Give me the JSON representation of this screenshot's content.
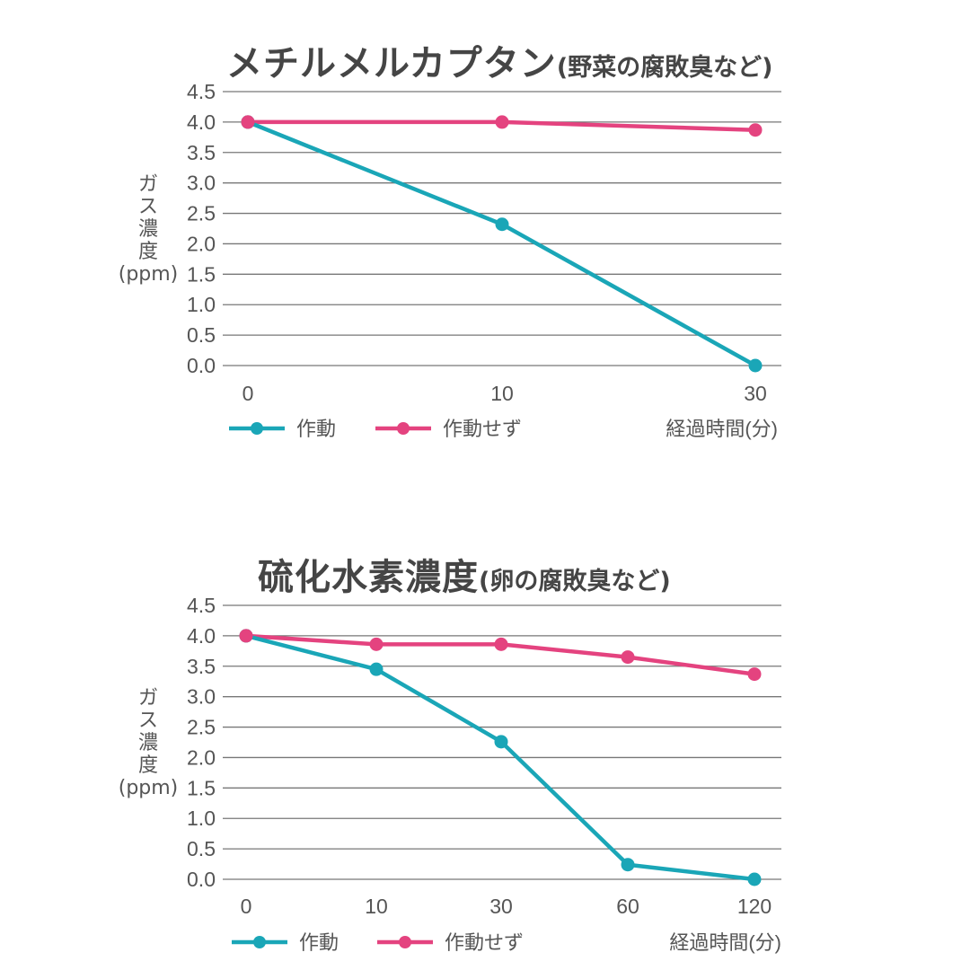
{
  "colors": {
    "active": "#1aa6b7",
    "inactive": "#e4437f",
    "grid": "#777777",
    "text": "#555555"
  },
  "chart_data": [
    {
      "type": "line",
      "title": "メチルメルカプタン",
      "subtitle": "(野菜の腐敗臭など)",
      "xlabel": "経過時間(分)",
      "ylabel": "ガス濃度(ppm)",
      "ylabel_lines": [
        "ガ",
        "ス",
        "濃",
        "度",
        "(ppm)"
      ],
      "categories": [
        "0",
        "10",
        "30"
      ],
      "yticks": [
        "4.5",
        "4.0",
        "3.5",
        "3.0",
        "2.5",
        "2.0",
        "1.5",
        "1.0",
        "0.5",
        "0.0"
      ],
      "ylim": [
        0,
        4.5
      ],
      "grid": true,
      "legend_position": "bottom-left",
      "series": [
        {
          "name": "作動",
          "color": "#1aa6b7",
          "values": [
            4.0,
            2.32,
            0.0
          ]
        },
        {
          "name": "作動せず",
          "color": "#e4437f",
          "values": [
            4.0,
            4.0,
            3.87
          ]
        }
      ]
    },
    {
      "type": "line",
      "title": "硫化水素濃度",
      "subtitle": "(卵の腐敗臭など)",
      "xlabel": "経過時間(分)",
      "ylabel": "ガス濃度(ppm)",
      "ylabel_lines": [
        "ガ",
        "ス",
        "濃",
        "度",
        "(ppm)"
      ],
      "categories": [
        "0",
        "10",
        "30",
        "60",
        "120"
      ],
      "yticks": [
        "4.5",
        "4.0",
        "3.5",
        "3.0",
        "2.5",
        "2.0",
        "1.5",
        "1.0",
        "0.5",
        "0.0"
      ],
      "ylim": [
        0,
        4.5
      ],
      "grid": true,
      "legend_position": "bottom-left",
      "series": [
        {
          "name": "作動",
          "color": "#1aa6b7",
          "values": [
            4.0,
            3.45,
            2.26,
            0.24,
            0.0
          ]
        },
        {
          "name": "作動せず",
          "color": "#e4437f",
          "values": [
            4.0,
            3.86,
            3.86,
            3.65,
            3.37
          ]
        }
      ]
    }
  ]
}
